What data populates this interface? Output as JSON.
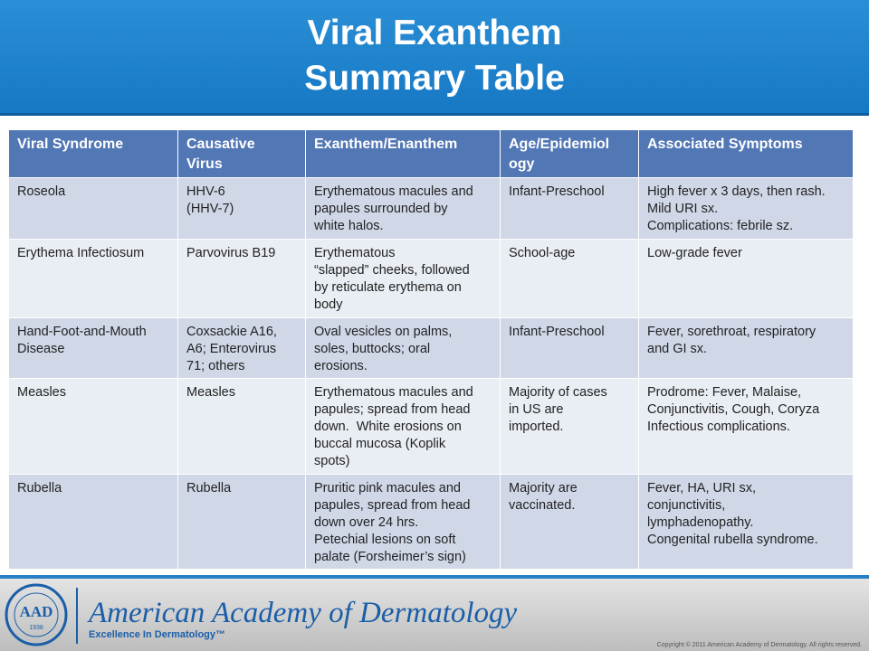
{
  "header": {
    "title_lines": [
      "Viral Exanthem",
      "Summary Table"
    ]
  },
  "table": {
    "columns": [
      [
        "Viral Syndrome"
      ],
      [
        "Causative",
        "Virus"
      ],
      [
        "Exanthem/Enanthem"
      ],
      [
        "Age/Epidemiol",
        "ogy"
      ],
      [
        "Associated Symptoms"
      ]
    ],
    "rows": [
      [
        [
          "Roseola"
        ],
        [
          "HHV-6",
          "(HHV-7)"
        ],
        [
          "Erythematous macules and",
          "papules surrounded by",
          "white halos."
        ],
        [
          "Infant-Preschool"
        ],
        [
          "High fever x 3 days, then rash.",
          "Mild URI sx.",
          "Complications: febrile sz."
        ]
      ],
      [
        [
          "Erythema Infectiosum"
        ],
        [
          "Parvovirus B19"
        ],
        [
          "Erythematous",
          "“slapped” cheeks, followed",
          "by reticulate erythema on",
          "body"
        ],
        [
          "School-age"
        ],
        [
          "Low-grade fever"
        ]
      ],
      [
        [
          "Hand-Foot-and-Mouth",
          "Disease"
        ],
        [
          "Coxsackie A16,",
          "A6; Enterovirus",
          "71; others"
        ],
        [
          "Oval vesicles on palms,",
          "soles, buttocks; oral",
          "erosions."
        ],
        [
          "Infant-Preschool"
        ],
        [
          "Fever, sorethroat, respiratory",
          "and GI sx."
        ]
      ],
      [
        [
          "Measles"
        ],
        [
          "Measles"
        ],
        [
          "Erythematous macules and",
          "papules; spread from head",
          "down.  White erosions on",
          "buccal mucosa (Koplik",
          "spots)"
        ],
        [
          "Majority of cases",
          "in US are",
          "imported."
        ],
        [
          "Prodrome: Fever, Malaise,",
          "Conjunctivitis, Cough, Coryza",
          "Infectious complications."
        ]
      ],
      [
        [
          "Rubella"
        ],
        [
          "Rubella"
        ],
        [
          "Pruritic pink macules and",
          "papules, spread from head",
          "down over 24 hrs.",
          "Petechial lesions on soft",
          "palate (Forsheimer’s sign)"
        ],
        [
          "Majority are",
          "vaccinated."
        ],
        [
          "Fever, HA, URI sx,",
          "conjunctivitis,",
          "lymphadenopathy.",
          "Congenital rubella syndrome."
        ]
      ]
    ]
  },
  "footer": {
    "logo": "AAD",
    "logo_year": "1938",
    "organization": "American Academy of Dermatology",
    "tagline": "Excellence In Dermatology™",
    "copyright": "Copyright © 2011 American Academy of Dermatology. All rights reserved."
  }
}
